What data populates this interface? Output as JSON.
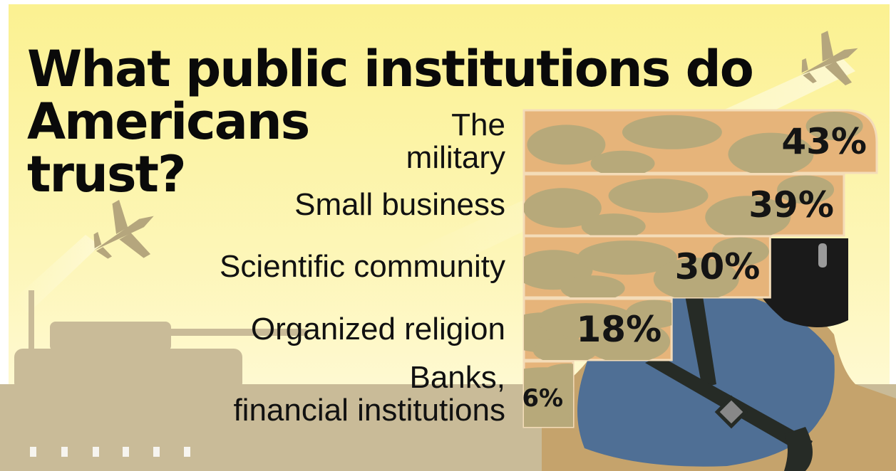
{
  "title_lines": [
    "What public institutions do",
    "Americans",
    "trust?"
  ],
  "chart_data": {
    "type": "bar",
    "orientation": "horizontal",
    "title": "What public institutions do Americans trust?",
    "categories": [
      "The military",
      "Small business",
      "Scientific community",
      "Organized religion",
      "Banks, financial institutions"
    ],
    "category_display": [
      [
        "The",
        "military"
      ],
      [
        "Small business"
      ],
      [
        "Scientific community"
      ],
      [
        "Organized religion"
      ],
      [
        "Banks,",
        "financial institutions"
      ]
    ],
    "values": [
      43,
      39,
      30,
      18,
      6
    ],
    "value_labels": [
      "43%",
      "39%",
      "30%",
      "18%",
      "6%"
    ],
    "unit": "%",
    "xlim": [
      0,
      43
    ],
    "grid": false,
    "legend": "none"
  },
  "colors": {
    "background": "#fbf39a",
    "bar": "#e6b47a",
    "camo": "#b7a97a",
    "bar_edge": "#f4dcb8",
    "silhouette": "#c9bb98",
    "soldier_blue": "#4f6f95",
    "hat": "#1a1a1a",
    "text": "#111111"
  }
}
